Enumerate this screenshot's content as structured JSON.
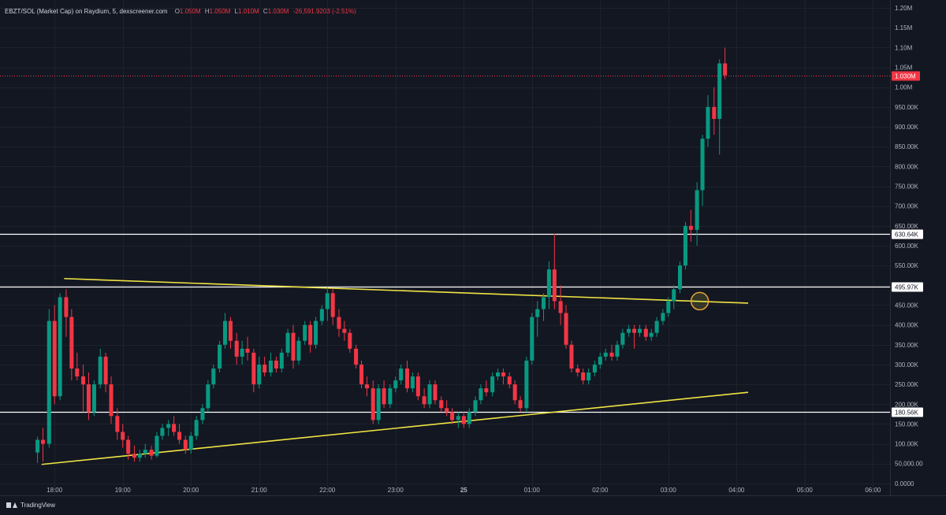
{
  "legend": {
    "title": "EBZT/SOL (Market Cap) on Raydium, 5, dexscreener.com",
    "open_label": "O",
    "open": "1.050M",
    "high_label": "H",
    "high": "1.050M",
    "low_label": "L",
    "low": "1.010M",
    "close_label": "C",
    "close": "1.030M",
    "change": "-26,591.9203 (-2.51%)"
  },
  "branding": {
    "name": "TradingView"
  },
  "colors": {
    "background": "#131722",
    "up": "#089981",
    "down": "#f23645",
    "trendline": "#f0e442",
    "level": "#ffffff",
    "axis_text": "#b2b5be"
  },
  "chart_data": {
    "type": "candlestick",
    "y_tick_labels": [
      "0.0000",
      "50,000.00",
      "100.00K",
      "150.00K",
      "200.00K",
      "250.00K",
      "300.00K",
      "350.00K",
      "400.00K",
      "450.00K",
      "500.00K",
      "550.00K",
      "600.00K",
      "650.00K",
      "700.00K",
      "750.00K",
      "800.00K",
      "850.00K",
      "900.00K",
      "950.00K",
      "1.00M",
      "1.05M",
      "1.10M",
      "1.15M",
      "1.20M"
    ],
    "y_tick_values": [
      0,
      50000,
      100000,
      150000,
      200000,
      250000,
      300000,
      350000,
      400000,
      450000,
      500000,
      550000,
      600000,
      650000,
      700000,
      750000,
      800000,
      850000,
      900000,
      950000,
      1000000,
      1050000,
      1100000,
      1150000,
      1200000
    ],
    "ylim": [
      -30000,
      1220000
    ],
    "x_tick_labels": [
      "18:00",
      "19:00",
      "20:00",
      "21:00",
      "22:00",
      "23:00",
      "25",
      "01:00",
      "02:00",
      "03:00",
      "04:00",
      "05:00",
      "06:00"
    ],
    "x_tick_hours": [
      18,
      19,
      20,
      21,
      22,
      23,
      24,
      25,
      26,
      27,
      28,
      29,
      30
    ],
    "xlim_hours": [
      17.2,
      30.25
    ],
    "candle_interval_minutes": 5,
    "price_line": {
      "value": 1030000,
      "label": "1.030M"
    },
    "horizontal_levels": [
      {
        "value": 630640,
        "label": "630.64K"
      },
      {
        "value": 495970,
        "label": "495.97K"
      },
      {
        "value": 180560,
        "label": "180.56K"
      }
    ],
    "trendlines": [
      {
        "from": {
          "t": 17.81,
          "v": 48000
        },
        "to": {
          "t": 28.17,
          "v": 230000
        }
      },
      {
        "from": {
          "t": 18.14,
          "v": 517000
        },
        "to": {
          "t": 28.17,
          "v": 455000
        }
      }
    ],
    "highlight_circle": {
      "t": 27.46,
      "v": 460000
    },
    "candles": [
      {
        "t": 17.75,
        "o": 78000,
        "h": 118000,
        "l": 52000,
        "c": 110000
      },
      {
        "t": 17.83,
        "o": 110000,
        "h": 140000,
        "l": 55000,
        "c": 100000
      },
      {
        "t": 17.92,
        "o": 100000,
        "h": 440000,
        "l": 90000,
        "c": 410000
      },
      {
        "t": 18.0,
        "o": 410000,
        "h": 450000,
        "l": 200000,
        "c": 220000
      },
      {
        "t": 18.08,
        "o": 220000,
        "h": 480000,
        "l": 210000,
        "c": 470000
      },
      {
        "t": 18.17,
        "o": 470000,
        "h": 490000,
        "l": 370000,
        "c": 420000
      },
      {
        "t": 18.25,
        "o": 420000,
        "h": 440000,
        "l": 260000,
        "c": 290000
      },
      {
        "t": 18.33,
        "o": 290000,
        "h": 330000,
        "l": 260000,
        "c": 270000
      },
      {
        "t": 18.42,
        "o": 270000,
        "h": 300000,
        "l": 180000,
        "c": 250000
      },
      {
        "t": 18.5,
        "o": 250000,
        "h": 280000,
        "l": 160000,
        "c": 180000
      },
      {
        "t": 18.58,
        "o": 180000,
        "h": 260000,
        "l": 170000,
        "c": 250000
      },
      {
        "t": 18.67,
        "o": 250000,
        "h": 340000,
        "l": 240000,
        "c": 320000
      },
      {
        "t": 18.75,
        "o": 320000,
        "h": 330000,
        "l": 230000,
        "c": 250000
      },
      {
        "t": 18.83,
        "o": 250000,
        "h": 270000,
        "l": 150000,
        "c": 170000
      },
      {
        "t": 18.92,
        "o": 170000,
        "h": 190000,
        "l": 110000,
        "c": 130000
      },
      {
        "t": 19.0,
        "o": 130000,
        "h": 150000,
        "l": 90000,
        "c": 110000
      },
      {
        "t": 19.08,
        "o": 110000,
        "h": 120000,
        "l": 60000,
        "c": 75000
      },
      {
        "t": 19.17,
        "o": 75000,
        "h": 95000,
        "l": 55000,
        "c": 65000
      },
      {
        "t": 19.25,
        "o": 65000,
        "h": 85000,
        "l": 55000,
        "c": 75000
      },
      {
        "t": 19.33,
        "o": 75000,
        "h": 100000,
        "l": 65000,
        "c": 85000
      },
      {
        "t": 19.42,
        "o": 85000,
        "h": 95000,
        "l": 60000,
        "c": 70000
      },
      {
        "t": 19.5,
        "o": 70000,
        "h": 130000,
        "l": 65000,
        "c": 120000
      },
      {
        "t": 19.58,
        "o": 120000,
        "h": 150000,
        "l": 110000,
        "c": 140000
      },
      {
        "t": 19.67,
        "o": 140000,
        "h": 160000,
        "l": 120000,
        "c": 150000
      },
      {
        "t": 19.75,
        "o": 150000,
        "h": 170000,
        "l": 120000,
        "c": 130000
      },
      {
        "t": 19.83,
        "o": 130000,
        "h": 150000,
        "l": 100000,
        "c": 110000
      },
      {
        "t": 19.92,
        "o": 110000,
        "h": 120000,
        "l": 75000,
        "c": 85000
      },
      {
        "t": 20.0,
        "o": 85000,
        "h": 130000,
        "l": 75000,
        "c": 120000
      },
      {
        "t": 20.08,
        "o": 120000,
        "h": 170000,
        "l": 110000,
        "c": 160000
      },
      {
        "t": 20.17,
        "o": 160000,
        "h": 200000,
        "l": 150000,
        "c": 190000
      },
      {
        "t": 20.25,
        "o": 190000,
        "h": 260000,
        "l": 180000,
        "c": 250000
      },
      {
        "t": 20.33,
        "o": 250000,
        "h": 300000,
        "l": 240000,
        "c": 290000
      },
      {
        "t": 20.42,
        "o": 290000,
        "h": 360000,
        "l": 280000,
        "c": 350000
      },
      {
        "t": 20.5,
        "o": 350000,
        "h": 430000,
        "l": 340000,
        "c": 410000
      },
      {
        "t": 20.58,
        "o": 410000,
        "h": 420000,
        "l": 340000,
        "c": 360000
      },
      {
        "t": 20.67,
        "o": 360000,
        "h": 380000,
        "l": 300000,
        "c": 320000
      },
      {
        "t": 20.75,
        "o": 320000,
        "h": 360000,
        "l": 300000,
        "c": 340000
      },
      {
        "t": 20.83,
        "o": 340000,
        "h": 370000,
        "l": 310000,
        "c": 330000
      },
      {
        "t": 20.92,
        "o": 330000,
        "h": 340000,
        "l": 230000,
        "c": 250000
      },
      {
        "t": 21.0,
        "o": 250000,
        "h": 320000,
        "l": 240000,
        "c": 300000
      },
      {
        "t": 21.08,
        "o": 300000,
        "h": 320000,
        "l": 270000,
        "c": 280000
      },
      {
        "t": 21.17,
        "o": 280000,
        "h": 330000,
        "l": 270000,
        "c": 310000
      },
      {
        "t": 21.25,
        "o": 310000,
        "h": 320000,
        "l": 280000,
        "c": 290000
      },
      {
        "t": 21.33,
        "o": 290000,
        "h": 340000,
        "l": 280000,
        "c": 330000
      },
      {
        "t": 21.42,
        "o": 330000,
        "h": 390000,
        "l": 320000,
        "c": 380000
      },
      {
        "t": 21.5,
        "o": 380000,
        "h": 400000,
        "l": 290000,
        "c": 310000
      },
      {
        "t": 21.58,
        "o": 310000,
        "h": 370000,
        "l": 300000,
        "c": 360000
      },
      {
        "t": 21.67,
        "o": 360000,
        "h": 410000,
        "l": 350000,
        "c": 400000
      },
      {
        "t": 21.75,
        "o": 400000,
        "h": 410000,
        "l": 330000,
        "c": 350000
      },
      {
        "t": 21.83,
        "o": 350000,
        "h": 420000,
        "l": 340000,
        "c": 410000
      },
      {
        "t": 21.92,
        "o": 410000,
        "h": 450000,
        "l": 400000,
        "c": 440000
      },
      {
        "t": 22.0,
        "o": 440000,
        "h": 495000,
        "l": 410000,
        "c": 480000
      },
      {
        "t": 22.08,
        "o": 480000,
        "h": 490000,
        "l": 400000,
        "c": 420000
      },
      {
        "t": 22.17,
        "o": 420000,
        "h": 440000,
        "l": 370000,
        "c": 390000
      },
      {
        "t": 22.25,
        "o": 390000,
        "h": 410000,
        "l": 360000,
        "c": 380000
      },
      {
        "t": 22.33,
        "o": 380000,
        "h": 390000,
        "l": 330000,
        "c": 340000
      },
      {
        "t": 22.42,
        "o": 340000,
        "h": 350000,
        "l": 290000,
        "c": 300000
      },
      {
        "t": 22.5,
        "o": 300000,
        "h": 310000,
        "l": 240000,
        "c": 250000
      },
      {
        "t": 22.58,
        "o": 250000,
        "h": 270000,
        "l": 220000,
        "c": 240000
      },
      {
        "t": 22.67,
        "o": 240000,
        "h": 260000,
        "l": 150000,
        "c": 160000
      },
      {
        "t": 22.75,
        "o": 160000,
        "h": 250000,
        "l": 150000,
        "c": 240000
      },
      {
        "t": 22.83,
        "o": 240000,
        "h": 260000,
        "l": 190000,
        "c": 200000
      },
      {
        "t": 22.92,
        "o": 200000,
        "h": 250000,
        "l": 190000,
        "c": 240000
      },
      {
        "t": 23.0,
        "o": 240000,
        "h": 270000,
        "l": 230000,
        "c": 260000
      },
      {
        "t": 23.08,
        "o": 260000,
        "h": 300000,
        "l": 250000,
        "c": 290000
      },
      {
        "t": 23.17,
        "o": 290000,
        "h": 310000,
        "l": 230000,
        "c": 240000
      },
      {
        "t": 23.25,
        "o": 240000,
        "h": 280000,
        "l": 230000,
        "c": 270000
      },
      {
        "t": 23.33,
        "o": 270000,
        "h": 280000,
        "l": 210000,
        "c": 220000
      },
      {
        "t": 23.42,
        "o": 220000,
        "h": 240000,
        "l": 190000,
        "c": 200000
      },
      {
        "t": 23.5,
        "o": 200000,
        "h": 260000,
        "l": 190000,
        "c": 250000
      },
      {
        "t": 23.58,
        "o": 250000,
        "h": 260000,
        "l": 200000,
        "c": 210000
      },
      {
        "t": 23.67,
        "o": 210000,
        "h": 220000,
        "l": 180000,
        "c": 190000
      },
      {
        "t": 23.75,
        "o": 190000,
        "h": 210000,
        "l": 170000,
        "c": 180000
      },
      {
        "t": 23.83,
        "o": 180000,
        "h": 190000,
        "l": 150000,
        "c": 160000
      },
      {
        "t": 23.92,
        "o": 160000,
        "h": 180000,
        "l": 140000,
        "c": 170000
      },
      {
        "t": 24.0,
        "o": 170000,
        "h": 180000,
        "l": 140000,
        "c": 150000
      },
      {
        "t": 24.08,
        "o": 150000,
        "h": 190000,
        "l": 140000,
        "c": 180000
      },
      {
        "t": 24.17,
        "o": 180000,
        "h": 220000,
        "l": 170000,
        "c": 210000
      },
      {
        "t": 24.25,
        "o": 210000,
        "h": 250000,
        "l": 200000,
        "c": 240000
      },
      {
        "t": 24.33,
        "o": 240000,
        "h": 260000,
        "l": 220000,
        "c": 230000
      },
      {
        "t": 24.42,
        "o": 230000,
        "h": 280000,
        "l": 220000,
        "c": 270000
      },
      {
        "t": 24.5,
        "o": 270000,
        "h": 290000,
        "l": 260000,
        "c": 280000
      },
      {
        "t": 24.58,
        "o": 280000,
        "h": 290000,
        "l": 250000,
        "c": 270000
      },
      {
        "t": 24.67,
        "o": 270000,
        "h": 280000,
        "l": 240000,
        "c": 250000
      },
      {
        "t": 24.75,
        "o": 250000,
        "h": 260000,
        "l": 200000,
        "c": 210000
      },
      {
        "t": 24.83,
        "o": 210000,
        "h": 220000,
        "l": 180000,
        "c": 190000
      },
      {
        "t": 24.92,
        "o": 190000,
        "h": 320000,
        "l": 180000,
        "c": 310000
      },
      {
        "t": 25.0,
        "o": 310000,
        "h": 430000,
        "l": 300000,
        "c": 420000
      },
      {
        "t": 25.08,
        "o": 420000,
        "h": 460000,
        "l": 370000,
        "c": 440000
      },
      {
        "t": 25.17,
        "o": 440000,
        "h": 480000,
        "l": 410000,
        "c": 470000
      },
      {
        "t": 25.25,
        "o": 470000,
        "h": 560000,
        "l": 440000,
        "c": 540000
      },
      {
        "t": 25.33,
        "o": 540000,
        "h": 630000,
        "l": 440000,
        "c": 460000
      },
      {
        "t": 25.42,
        "o": 460000,
        "h": 500000,
        "l": 400000,
        "c": 430000
      },
      {
        "t": 25.5,
        "o": 430000,
        "h": 450000,
        "l": 340000,
        "c": 350000
      },
      {
        "t": 25.58,
        "o": 350000,
        "h": 360000,
        "l": 280000,
        "c": 290000
      },
      {
        "t": 25.67,
        "o": 290000,
        "h": 300000,
        "l": 270000,
        "c": 280000
      },
      {
        "t": 25.75,
        "o": 280000,
        "h": 290000,
        "l": 250000,
        "c": 260000
      },
      {
        "t": 25.83,
        "o": 260000,
        "h": 290000,
        "l": 250000,
        "c": 280000
      },
      {
        "t": 25.92,
        "o": 280000,
        "h": 310000,
        "l": 270000,
        "c": 300000
      },
      {
        "t": 26.0,
        "o": 300000,
        "h": 330000,
        "l": 290000,
        "c": 320000
      },
      {
        "t": 26.08,
        "o": 320000,
        "h": 340000,
        "l": 310000,
        "c": 330000
      },
      {
        "t": 26.17,
        "o": 330000,
        "h": 350000,
        "l": 310000,
        "c": 320000
      },
      {
        "t": 26.25,
        "o": 320000,
        "h": 360000,
        "l": 310000,
        "c": 350000
      },
      {
        "t": 26.33,
        "o": 350000,
        "h": 390000,
        "l": 340000,
        "c": 380000
      },
      {
        "t": 26.42,
        "o": 380000,
        "h": 400000,
        "l": 370000,
        "c": 390000
      },
      {
        "t": 26.5,
        "o": 390000,
        "h": 400000,
        "l": 340000,
        "c": 380000
      },
      {
        "t": 26.58,
        "o": 380000,
        "h": 400000,
        "l": 370000,
        "c": 390000
      },
      {
        "t": 26.67,
        "o": 390000,
        "h": 400000,
        "l": 360000,
        "c": 370000
      },
      {
        "t": 26.75,
        "o": 370000,
        "h": 390000,
        "l": 360000,
        "c": 380000
      },
      {
        "t": 26.83,
        "o": 380000,
        "h": 420000,
        "l": 370000,
        "c": 410000
      },
      {
        "t": 26.92,
        "o": 410000,
        "h": 440000,
        "l": 400000,
        "c": 430000
      },
      {
        "t": 27.0,
        "o": 430000,
        "h": 470000,
        "l": 420000,
        "c": 460000
      },
      {
        "t": 27.08,
        "o": 460000,
        "h": 500000,
        "l": 440000,
        "c": 490000
      },
      {
        "t": 27.17,
        "o": 490000,
        "h": 560000,
        "l": 480000,
        "c": 550000
      },
      {
        "t": 27.25,
        "o": 550000,
        "h": 660000,
        "l": 540000,
        "c": 650000
      },
      {
        "t": 27.33,
        "o": 650000,
        "h": 690000,
        "l": 610000,
        "c": 640000
      },
      {
        "t": 27.42,
        "o": 640000,
        "h": 760000,
        "l": 600000,
        "c": 740000
      },
      {
        "t": 27.5,
        "o": 740000,
        "h": 880000,
        "l": 700000,
        "c": 870000
      },
      {
        "t": 27.58,
        "o": 870000,
        "h": 980000,
        "l": 850000,
        "c": 950000
      },
      {
        "t": 27.67,
        "o": 950000,
        "h": 1000000,
        "l": 880000,
        "c": 920000
      },
      {
        "t": 27.75,
        "o": 920000,
        "h": 1070000,
        "l": 830000,
        "c": 1060000
      },
      {
        "t": 27.83,
        "o": 1060000,
        "h": 1100000,
        "l": 1020000,
        "c": 1030000
      }
    ]
  }
}
